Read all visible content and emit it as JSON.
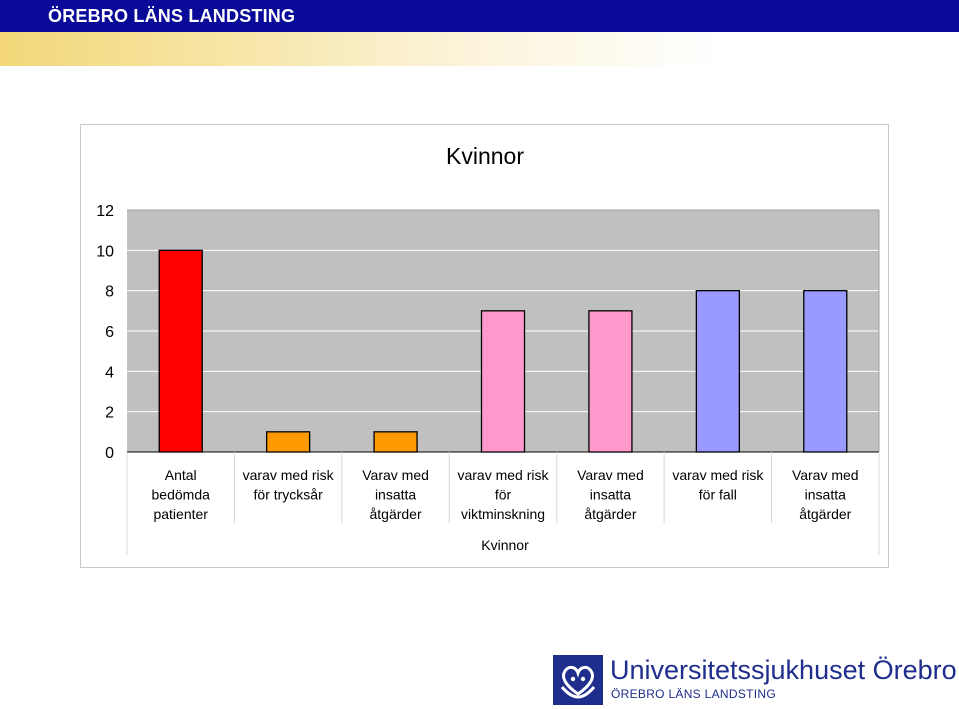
{
  "header": {
    "title": "ÖREBRO LÄNS LANDSTING"
  },
  "logo": {
    "name": "Universitetssjukhuset Örebro",
    "subtitle": "ÖREBRO LÄNS LANDSTING",
    "icon": "heart-hands-logo-icon",
    "color": "#1f2d8c"
  },
  "chart_data": {
    "type": "bar",
    "title": "Kvinnor",
    "xlabel": "Kvinnor",
    "ylabel": "",
    "ylim": [
      0,
      12
    ],
    "yticks": [
      "0",
      "2",
      "4",
      "6",
      "8",
      "10",
      "12"
    ],
    "grid": true,
    "legend": "none",
    "plot_background": "#c0c0c0",
    "categories": [
      [
        "Antal",
        "bedömda",
        "patienter"
      ],
      [
        "varav med risk",
        "för trycksår"
      ],
      [
        "Varav med",
        "insatta",
        "åtgärder"
      ],
      [
        "varav med risk",
        "för",
        "viktminskning"
      ],
      [
        "Varav med",
        "insatta",
        "åtgärder"
      ],
      [
        "varav med risk",
        "för fall"
      ],
      [
        "Varav med",
        "insatta",
        "åtgärder"
      ]
    ],
    "values": [
      10,
      1,
      1,
      7,
      7,
      8,
      8
    ],
    "colors": [
      "#ff0000",
      "#ff9900",
      "#ff9900",
      "#ff99cc",
      "#ff99cc",
      "#9999ff",
      "#9999ff"
    ]
  }
}
